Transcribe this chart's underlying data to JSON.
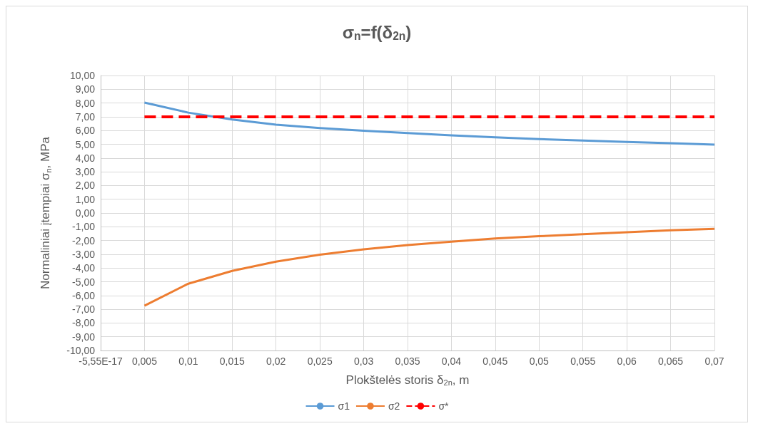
{
  "chart_data": {
    "type": "line",
    "title": "σ$_{n}$=f(δ$_{2n}$)",
    "xlabel": "Plokštelės storis δ$_{2n}$, m",
    "ylabel": "Normaliniai įtempiai σ$_{n}$, MPa",
    "x": [
      0.005,
      0.01,
      0.015,
      0.02,
      0.025,
      0.03,
      0.035,
      0.04,
      0.045,
      0.05,
      0.055,
      0.06,
      0.065,
      0.07
    ],
    "series": [
      {
        "name": "σ1",
        "color": "#5b9bd5",
        "values": [
          8.03,
          7.3,
          6.8,
          6.43,
          6.18,
          5.98,
          5.81,
          5.65,
          5.5,
          5.38,
          5.27,
          5.17,
          5.08,
          4.97
        ]
      },
      {
        "name": "σ2",
        "color": "#ed7d31",
        "values": [
          -6.74,
          -5.14,
          -4.21,
          -3.54,
          -3.03,
          -2.64,
          -2.33,
          -2.08,
          -1.85,
          -1.69,
          -1.54,
          -1.4,
          -1.26,
          -1.15
        ]
      },
      {
        "name": "σ*",
        "color": "#ff0000",
        "line_style": "dashed",
        "values": [
          7,
          7,
          7,
          7,
          7,
          7,
          7,
          7,
          7,
          7,
          7,
          7,
          7,
          7
        ]
      }
    ],
    "xlim": [
      0,
      0.07
    ],
    "xticks": [
      {
        "value": 0,
        "label": "-5,55E-17"
      },
      {
        "value": 0.005,
        "label": "0,005"
      },
      {
        "value": 0.01,
        "label": "0,01"
      },
      {
        "value": 0.015,
        "label": "0,015"
      },
      {
        "value": 0.02,
        "label": "0,02"
      },
      {
        "value": 0.025,
        "label": "0,025"
      },
      {
        "value": 0.03,
        "label": "0,03"
      },
      {
        "value": 0.035,
        "label": "0,035"
      },
      {
        "value": 0.04,
        "label": "0,04"
      },
      {
        "value": 0.045,
        "label": "0,045"
      },
      {
        "value": 0.05,
        "label": "0,05"
      },
      {
        "value": 0.055,
        "label": "0,055"
      },
      {
        "value": 0.06,
        "label": "0,06"
      },
      {
        "value": 0.065,
        "label": "0,065"
      },
      {
        "value": 0.07,
        "label": "0,07"
      }
    ],
    "ylim": [
      -10,
      10
    ],
    "yticks": [
      {
        "value": -10,
        "label": "-10,00"
      },
      {
        "value": -9,
        "label": "-9,00"
      },
      {
        "value": -8,
        "label": "-8,00"
      },
      {
        "value": -7,
        "label": "-7,00"
      },
      {
        "value": -6,
        "label": "-6,00"
      },
      {
        "value": -5,
        "label": "-5,00"
      },
      {
        "value": -4,
        "label": "-4,00"
      },
      {
        "value": -3,
        "label": "-3,00"
      },
      {
        "value": -2,
        "label": "-2,00"
      },
      {
        "value": -1,
        "label": "-1,00"
      },
      {
        "value": 0,
        "label": "0,00"
      },
      {
        "value": 1,
        "label": "1,00"
      },
      {
        "value": 2,
        "label": "2,00"
      },
      {
        "value": 3,
        "label": "3,00"
      },
      {
        "value": 4,
        "label": "4,00"
      },
      {
        "value": 5,
        "label": "5,00"
      },
      {
        "value": 6,
        "label": "6,00"
      },
      {
        "value": 7,
        "label": "7,00"
      },
      {
        "value": 8,
        "label": "8,00"
      },
      {
        "value": 9,
        "label": "9,00"
      },
      {
        "value": 10,
        "label": "10,00"
      }
    ],
    "grid": true,
    "legend": "bottom",
    "marker": "none"
  }
}
